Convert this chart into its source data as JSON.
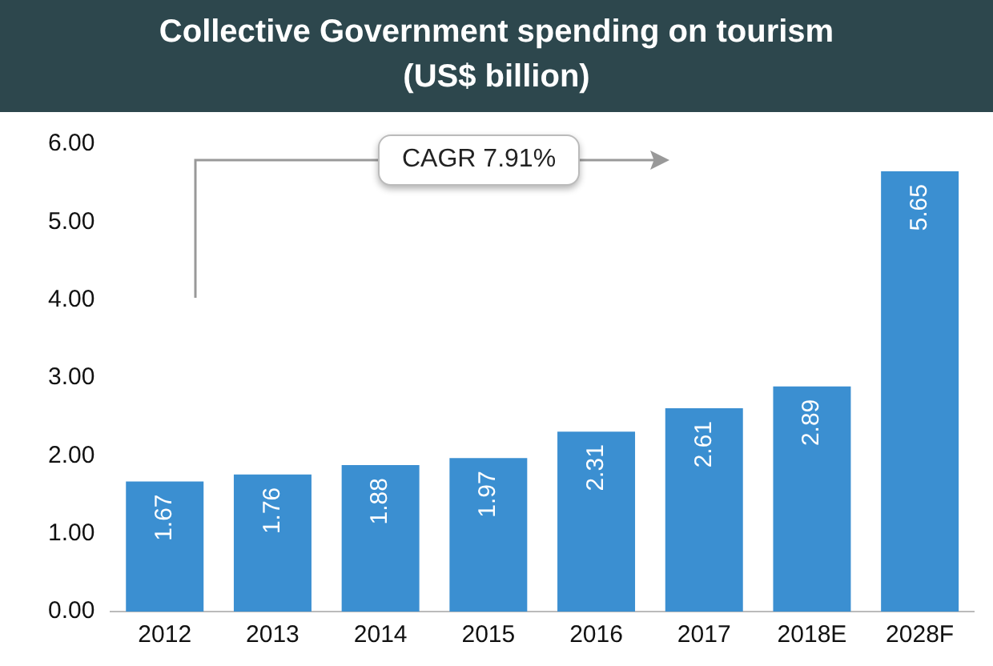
{
  "chart_data": {
    "type": "bar",
    "title": "Collective Government spending on tourism",
    "subtitle": "(US$ billion)",
    "categories": [
      "2012",
      "2013",
      "2014",
      "2015",
      "2016",
      "2017",
      "2018E",
      "2028F"
    ],
    "values": [
      1.67,
      1.76,
      1.88,
      1.97,
      2.31,
      2.61,
      2.89,
      5.65
    ],
    "color": "#3b8fd1",
    "ylim": [
      0,
      6
    ],
    "yticks": [
      {
        "value": 0,
        "label": "0.00"
      },
      {
        "value": 1,
        "label": "1.00"
      },
      {
        "value": 2,
        "label": "2.00"
      },
      {
        "value": 3,
        "label": "3.00"
      },
      {
        "value": 4,
        "label": "4.00"
      },
      {
        "value": 5,
        "label": "5.00"
      },
      {
        "value": 6,
        "label": "6.00"
      }
    ],
    "grid": false,
    "legend": false,
    "data_labels": true,
    "annotations": [
      "CAGR 7.91%"
    ]
  }
}
